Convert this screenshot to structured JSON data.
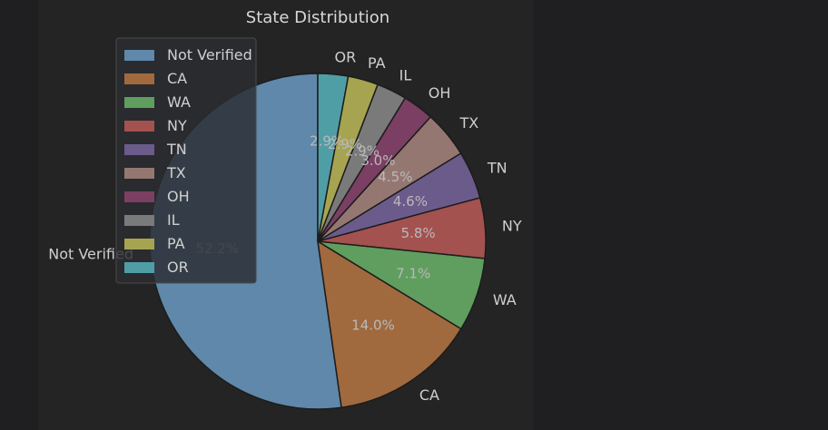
{
  "chart_data": {
    "type": "pie",
    "title": "State Distribution",
    "slices": [
      {
        "label": "Not Verified",
        "value": 52.2,
        "pct_label": "52.2%",
        "color": "#5f88aa"
      },
      {
        "label": "CA",
        "value": 14.0,
        "pct_label": "14.0%",
        "color": "#a06a3e"
      },
      {
        "label": "WA",
        "value": 7.1,
        "pct_label": "7.1%",
        "color": "#5f9e5f"
      },
      {
        "label": "NY",
        "value": 5.8,
        "pct_label": "5.8%",
        "color": "#a4524f"
      },
      {
        "label": "TN",
        "value": 4.6,
        "pct_label": "4.6%",
        "color": "#6b5b8b"
      },
      {
        "label": "TX",
        "value": 4.5,
        "pct_label": "4.5%",
        "color": "#957771"
      },
      {
        "label": "OH",
        "value": 3.0,
        "pct_label": "3.0%",
        "color": "#7a3f62"
      },
      {
        "label": "IL",
        "value": 2.9,
        "pct_label": "2.9%",
        "color": "#7a7a7a"
      },
      {
        "label": "PA",
        "value": 2.9,
        "pct_label": "2.9%",
        "color": "#a7a451"
      },
      {
        "label": "OR",
        "value": 2.9,
        "pct_label": "2.9%",
        "color": "#4f9ea6"
      }
    ],
    "start_angle_deg": 90,
    "direction": "counterclockwise",
    "legend": {
      "placement": "upper-left",
      "entries": [
        "Not Verified",
        "CA",
        "WA",
        "NY",
        "TN",
        "TX",
        "OH",
        "IL",
        "PA",
        "OR"
      ]
    }
  }
}
